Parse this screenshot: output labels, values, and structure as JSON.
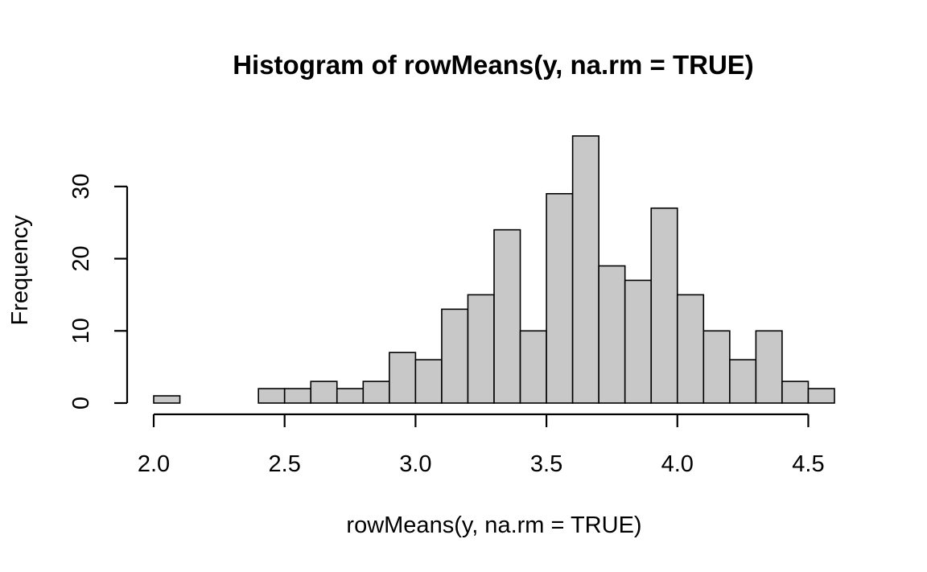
{
  "chart_data": {
    "type": "bar",
    "subtype": "histogram",
    "title": "Histogram of rowMeans(y, na.rm = TRUE)",
    "xlabel": "rowMeans(y, na.rm = TRUE)",
    "ylabel": "Frequency",
    "bin_width": 0.1,
    "bins": [
      {
        "start": 2.0,
        "end": 2.1,
        "count": 1
      },
      {
        "start": 2.1,
        "end": 2.2,
        "count": 0
      },
      {
        "start": 2.2,
        "end": 2.3,
        "count": 0
      },
      {
        "start": 2.3,
        "end": 2.4,
        "count": 0
      },
      {
        "start": 2.4,
        "end": 2.5,
        "count": 2
      },
      {
        "start": 2.5,
        "end": 2.6,
        "count": 2
      },
      {
        "start": 2.6,
        "end": 2.7,
        "count": 3
      },
      {
        "start": 2.7,
        "end": 2.8,
        "count": 2
      },
      {
        "start": 2.8,
        "end": 2.9,
        "count": 3
      },
      {
        "start": 2.9,
        "end": 3.0,
        "count": 7
      },
      {
        "start": 3.0,
        "end": 3.1,
        "count": 6
      },
      {
        "start": 3.1,
        "end": 3.2,
        "count": 13
      },
      {
        "start": 3.2,
        "end": 3.3,
        "count": 15
      },
      {
        "start": 3.3,
        "end": 3.4,
        "count": 24
      },
      {
        "start": 3.4,
        "end": 3.5,
        "count": 10
      },
      {
        "start": 3.5,
        "end": 3.6,
        "count": 29
      },
      {
        "start": 3.6,
        "end": 3.7,
        "count": 37
      },
      {
        "start": 3.7,
        "end": 3.8,
        "count": 19
      },
      {
        "start": 3.8,
        "end": 3.9,
        "count": 17
      },
      {
        "start": 3.9,
        "end": 4.0,
        "count": 27
      },
      {
        "start": 4.0,
        "end": 4.1,
        "count": 15
      },
      {
        "start": 4.1,
        "end": 4.2,
        "count": 10
      },
      {
        "start": 4.2,
        "end": 4.3,
        "count": 6
      },
      {
        "start": 4.3,
        "end": 4.4,
        "count": 10
      },
      {
        "start": 4.4,
        "end": 4.5,
        "count": 3
      },
      {
        "start": 4.5,
        "end": 4.6,
        "count": 2
      }
    ],
    "x_ticks": [
      {
        "value": 2.0,
        "label": "2.0"
      },
      {
        "value": 2.5,
        "label": "2.5"
      },
      {
        "value": 3.0,
        "label": "3.0"
      },
      {
        "value": 3.5,
        "label": "3.5"
      },
      {
        "value": 4.0,
        "label": "4.0"
      },
      {
        "value": 4.5,
        "label": "4.5"
      }
    ],
    "y_ticks": [
      {
        "value": 0,
        "label": "0"
      },
      {
        "value": 10,
        "label": "10"
      },
      {
        "value": 20,
        "label": "20"
      },
      {
        "value": 30,
        "label": "30"
      }
    ],
    "xlim": [
      2.0,
      4.6
    ],
    "ylim": [
      0,
      37
    ],
    "grid": false,
    "legend": "none",
    "colors": {
      "bar_fill": "#c8c8c8",
      "bar_stroke": "#000000"
    }
  }
}
